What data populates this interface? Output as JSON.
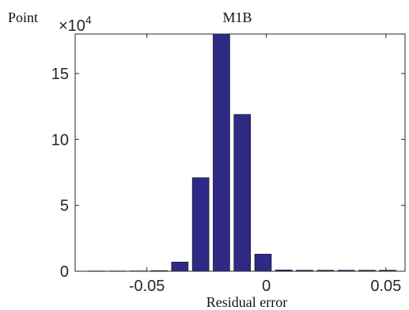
{
  "chart_data": {
    "type": "bar",
    "title": "M1B",
    "xlabel": "Residual error",
    "ylabel": "Point",
    "y_multiplier_label": "×10",
    "y_multiplier_exponent": "4",
    "xlim": [
      -0.08,
      0.058
    ],
    "ylim": [
      0,
      18
    ],
    "bar_color": "#2e2a85",
    "x_ticks": [
      {
        "value": -0.05,
        "label": "-0.05"
      },
      {
        "value": 0,
        "label": "0"
      },
      {
        "value": 0.05,
        "label": "0.05"
      }
    ],
    "y_ticks": [
      {
        "value": 0,
        "label": "0"
      },
      {
        "value": 5,
        "label": "5"
      },
      {
        "value": 10,
        "label": "10"
      },
      {
        "value": 15,
        "label": "15"
      }
    ],
    "bars": [
      {
        "x": -0.071,
        "value": 0.02
      },
      {
        "x": -0.0623,
        "value": 0.02
      },
      {
        "x": -0.0536,
        "value": 0.03
      },
      {
        "x": -0.0449,
        "value": 0.05
      },
      {
        "x": -0.0362,
        "value": 0.7
      },
      {
        "x": -0.0275,
        "value": 7.1
      },
      {
        "x": -0.0188,
        "value": 18.0
      },
      {
        "x": -0.0101,
        "value": 11.9
      },
      {
        "x": -0.0014,
        "value": 1.3
      },
      {
        "x": 0.0073,
        "value": 0.1
      },
      {
        "x": 0.016,
        "value": 0.08
      },
      {
        "x": 0.0247,
        "value": 0.08
      },
      {
        "x": 0.0334,
        "value": 0.08
      },
      {
        "x": 0.0421,
        "value": 0.08
      },
      {
        "x": 0.0508,
        "value": 0.08
      }
    ],
    "bin_width": 0.0087,
    "grid": false,
    "legend": "none"
  }
}
